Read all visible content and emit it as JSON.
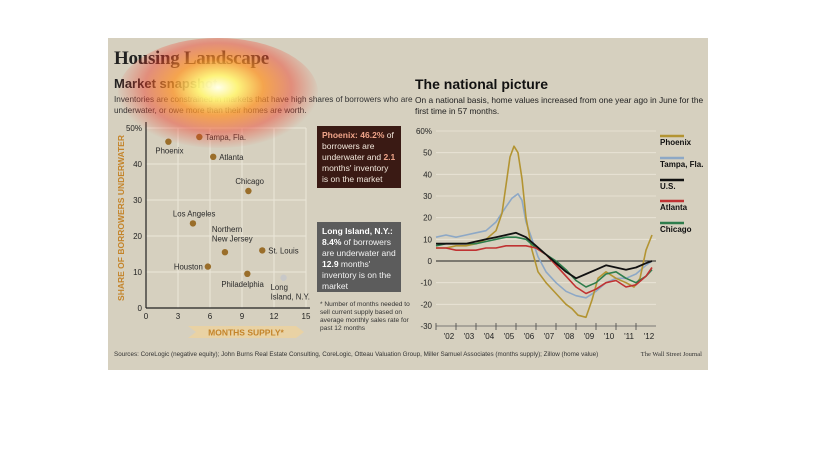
{
  "header": {
    "title": "Housing Landscape",
    "left_subtitle": "Market snapshot",
    "left_desc": "Inventories are constrained in markets that have high shares of borrowers who are underwater, or owe more than their homes are worth.",
    "right_subtitle": "The national picture",
    "right_desc": "On a national basis, home values increased from one year ago in June for the first time in 57 months."
  },
  "callouts": {
    "phoenix": {
      "name": "Phoenix:",
      "pct": "46.2%",
      "t1": "of borrowers are underwater and",
      "months": "2.1",
      "t2": "months' inventory is on the market"
    },
    "long_island": {
      "name": "Long Island, N.Y.:",
      "pct": "8.4%",
      "t1": "of borrowers are underwater and",
      "months": "12.9",
      "t2": "months' inventory is on the market"
    }
  },
  "note": "* Number of months needed to sell current supply based on average monthly sales rate for past 12 months",
  "footer": {
    "sources": "Sources: CoreLogic (negative equity); John Burns Real Estate Consulting, CoreLogic, Otteau Valuation Group, Miller Samuel Associates (months supply); Zillow (home value)",
    "brand": "The Wall Street Journal"
  },
  "colors": {
    "point": "#9a6e2a",
    "point_li": "#c8c8c8",
    "phoenix": "#b39432",
    "tampa": "#8da8c6",
    "us": "#111111",
    "atlanta": "#c03232",
    "chicago": "#2e7d4c"
  },
  "chart_data": [
    {
      "type": "scatter",
      "xlabel": "MONTHS SUPPLY*",
      "ylabel": "SHARE OF BORROWERS UNDERWATER",
      "xlim": [
        0,
        15
      ],
      "ylim": [
        0,
        50
      ],
      "xticks": [
        0,
        3,
        6,
        9,
        12,
        15
      ],
      "yticks": [
        0,
        10,
        20,
        30,
        40,
        50
      ],
      "ytick_labels": [
        "0",
        "10",
        "20",
        "30",
        "40",
        "50%"
      ],
      "grid": true,
      "points": [
        {
          "label": "Phoenix",
          "x": 2.1,
          "y": 46.2
        },
        {
          "label": "Tampa, Fla.",
          "x": 5.0,
          "y": 47.5
        },
        {
          "label": "Atlanta",
          "x": 6.3,
          "y": 42.0
        },
        {
          "label": "Chicago",
          "x": 9.6,
          "y": 32.5
        },
        {
          "label": "Los Angeles",
          "x": 4.4,
          "y": 23.5
        },
        {
          "label": "Northern New Jersey",
          "x": 7.4,
          "y": 15.5
        },
        {
          "label": "St. Louis",
          "x": 10.9,
          "y": 16.0
        },
        {
          "label": "Houston",
          "x": 5.8,
          "y": 11.5
        },
        {
          "label": "Philadelphia",
          "x": 9.5,
          "y": 9.5
        },
        {
          "label": "Long Island, N.Y.",
          "x": 12.9,
          "y": 8.4
        }
      ]
    },
    {
      "type": "line",
      "xlim": [
        2001.5,
        2012.5
      ],
      "ylim": [
        -30,
        60
      ],
      "yticks": [
        60,
        50,
        40,
        30,
        20,
        10,
        0,
        -10,
        -20,
        -30
      ],
      "ytick_labels": [
        "60%",
        "50",
        "40",
        "30",
        "20",
        "10",
        "0",
        "-10",
        "-20",
        "-30"
      ],
      "xtick_labels": [
        "'02",
        "'03",
        "'04",
        "'05",
        "'06",
        "'07",
        "'08",
        "'09",
        "'10",
        "'11",
        "'12"
      ],
      "series": [
        {
          "name": "Phoenix",
          "color": "#b39432",
          "x": [
            2001.5,
            2002,
            2002.5,
            2003,
            2003.5,
            2004,
            2004.5,
            2004.8,
            2005,
            2005.2,
            2005.4,
            2005.6,
            2005.8,
            2006,
            2006.3,
            2006.6,
            2007,
            2007.5,
            2008,
            2008.3,
            2008.6,
            2009,
            2009.3,
            2009.6,
            2010,
            2010.5,
            2011,
            2011.4,
            2011.7,
            2012,
            2012.3
          ],
          "values": [
            6,
            6,
            7,
            7,
            8,
            10,
            14,
            22,
            35,
            48,
            53,
            50,
            38,
            20,
            5,
            -5,
            -10,
            -15,
            -20,
            -22,
            -25,
            -26,
            -18,
            -8,
            -5,
            -8,
            -10,
            -12,
            -8,
            5,
            12
          ]
        },
        {
          "name": "Tampa, Fla.",
          "color": "#8da8c6",
          "x": [
            2001.5,
            2002,
            2002.5,
            2003,
            2003.5,
            2004,
            2004.5,
            2005,
            2005.3,
            2005.6,
            2005.8,
            2006,
            2006.3,
            2006.6,
            2007,
            2007.5,
            2008,
            2008.5,
            2009,
            2009.5,
            2010,
            2010.5,
            2011,
            2011.5,
            2012,
            2012.3
          ],
          "values": [
            11,
            12,
            11,
            12,
            13,
            14,
            18,
            25,
            29,
            31,
            28,
            18,
            10,
            2,
            -5,
            -10,
            -14,
            -16,
            -17,
            -14,
            -10,
            -8,
            -8,
            -6,
            -2,
            0
          ]
        },
        {
          "name": "U.S.",
          "color": "#111111",
          "x": [
            2001.5,
            2002,
            2002.5,
            2003,
            2003.5,
            2004,
            2004.5,
            2005,
            2005.5,
            2006,
            2006.5,
            2007,
            2007.5,
            2008,
            2008.5,
            2009,
            2009.5,
            2010,
            2010.5,
            2011,
            2011.5,
            2012,
            2012.3
          ],
          "values": [
            8,
            8,
            8,
            8,
            9,
            10,
            11,
            12,
            13,
            11,
            7,
            3,
            -1,
            -5,
            -8,
            -6,
            -4,
            -2,
            -3,
            -4,
            -3,
            -1,
            0
          ]
        },
        {
          "name": "Atlanta",
          "color": "#c03232",
          "x": [
            2001.5,
            2002,
            2002.5,
            2003,
            2003.5,
            2004,
            2004.5,
            2005,
            2005.5,
            2006,
            2006.5,
            2007,
            2007.5,
            2008,
            2008.5,
            2009,
            2009.5,
            2010,
            2010.5,
            2011,
            2011.5,
            2012,
            2012.3
          ],
          "values": [
            6,
            6,
            5,
            5,
            5,
            6,
            6,
            7,
            7,
            7,
            6,
            3,
            -2,
            -7,
            -12,
            -15,
            -13,
            -10,
            -9,
            -12,
            -11,
            -7,
            -3
          ]
        },
        {
          "name": "Chicago",
          "color": "#2e7d4c",
          "x": [
            2001.5,
            2002,
            2002.5,
            2003,
            2003.5,
            2004,
            2004.5,
            2005,
            2005.5,
            2006,
            2006.5,
            2007,
            2007.5,
            2008,
            2008.5,
            2009,
            2009.5,
            2010,
            2010.5,
            2011,
            2011.5,
            2012,
            2012.3
          ],
          "values": [
            7,
            8,
            8,
            8,
            8,
            9,
            10,
            11,
            11,
            10,
            6,
            3,
            0,
            -4,
            -9,
            -12,
            -10,
            -6,
            -5,
            -8,
            -10,
            -7,
            -4
          ]
        }
      ]
    }
  ]
}
